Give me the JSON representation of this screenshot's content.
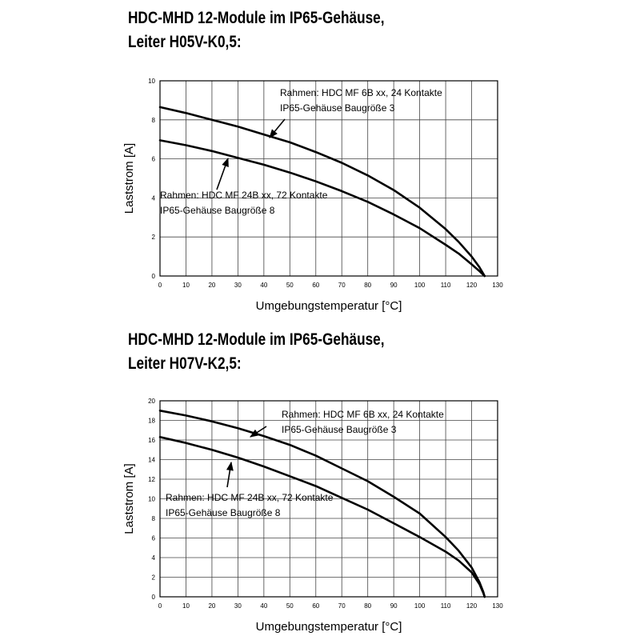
{
  "chart_data": [
    {
      "type": "line",
      "title_lines": [
        "HDC-MHD 12-Module im IP65-Gehäuse,",
        "Leiter H05V-K0,5:"
      ],
      "xlabel": "Umgebungstemperatur [°C]",
      "ylabel": "Laststrom [A]",
      "xlim": [
        0,
        130
      ],
      "ylim": [
        0,
        10
      ],
      "xticks": [
        0,
        10,
        20,
        30,
        40,
        50,
        60,
        70,
        80,
        90,
        100,
        110,
        120,
        130
      ],
      "yticks": [
        0,
        2,
        4,
        6,
        8,
        10
      ],
      "grid": true,
      "series": [
        {
          "name_lines": [
            "Rahmen: HDC MF 6B xx, 24 Kontakte",
            "IP65-Gehäuse Baugröße 3"
          ],
          "x": [
            0,
            10,
            20,
            30,
            40,
            50,
            60,
            70,
            80,
            90,
            100,
            110,
            115,
            120,
            123,
            125
          ],
          "y": [
            8.65,
            8.35,
            8.0,
            7.65,
            7.25,
            6.85,
            6.35,
            5.8,
            5.15,
            4.4,
            3.5,
            2.4,
            1.75,
            1.0,
            0.45,
            0.0
          ]
        },
        {
          "name_lines": [
            "Rahmen: HDC MF 24B xx, 72 Kontakte",
            "IP65-Gehäuse Baugröße 8"
          ],
          "x": [
            0,
            10,
            20,
            30,
            40,
            50,
            60,
            70,
            80,
            90,
            100,
            110,
            115,
            120,
            123,
            125
          ],
          "y": [
            6.95,
            6.7,
            6.4,
            6.05,
            5.7,
            5.3,
            4.85,
            4.35,
            3.8,
            3.15,
            2.45,
            1.6,
            1.15,
            0.6,
            0.25,
            0.0
          ]
        }
      ]
    },
    {
      "type": "line",
      "title_lines": [
        "HDC-MHD 12-Module im IP65-Gehäuse,",
        "Leiter H07V-K2,5:"
      ],
      "xlabel": "Umgebungstemperatur [°C]",
      "ylabel": "Laststrom [A]",
      "xlim": [
        0,
        130
      ],
      "ylim": [
        0,
        20
      ],
      "xticks": [
        0,
        10,
        20,
        30,
        40,
        50,
        60,
        70,
        80,
        90,
        100,
        110,
        120,
        130
      ],
      "yticks": [
        0,
        2,
        4,
        6,
        8,
        10,
        12,
        14,
        16,
        18,
        20
      ],
      "grid": true,
      "series": [
        {
          "name_lines": [
            "Rahmen: HDC MF 6B xx, 24 Kontakte",
            "IP65-Gehäuse Baugröße 3"
          ],
          "x": [
            0,
            10,
            20,
            30,
            40,
            50,
            60,
            70,
            80,
            90,
            100,
            110,
            115,
            120,
            123,
            124.5,
            125
          ],
          "y": [
            19.0,
            18.5,
            17.9,
            17.2,
            16.4,
            15.5,
            14.4,
            13.1,
            11.8,
            10.2,
            8.5,
            6.1,
            4.7,
            3.0,
            1.5,
            0.5,
            0.0
          ]
        },
        {
          "name_lines": [
            "Rahmen: HDC MF 24B xx, 72 Kontakte",
            "IP65-Gehäuse Baugröße 8"
          ],
          "x": [
            0,
            10,
            20,
            30,
            40,
            50,
            60,
            70,
            80,
            90,
            100,
            110,
            115,
            120,
            123,
            124.5,
            125
          ],
          "y": [
            16.3,
            15.7,
            15.0,
            14.2,
            13.3,
            12.3,
            11.3,
            10.1,
            8.9,
            7.5,
            6.1,
            4.6,
            3.7,
            2.5,
            1.3,
            0.4,
            0.0
          ]
        }
      ]
    }
  ]
}
